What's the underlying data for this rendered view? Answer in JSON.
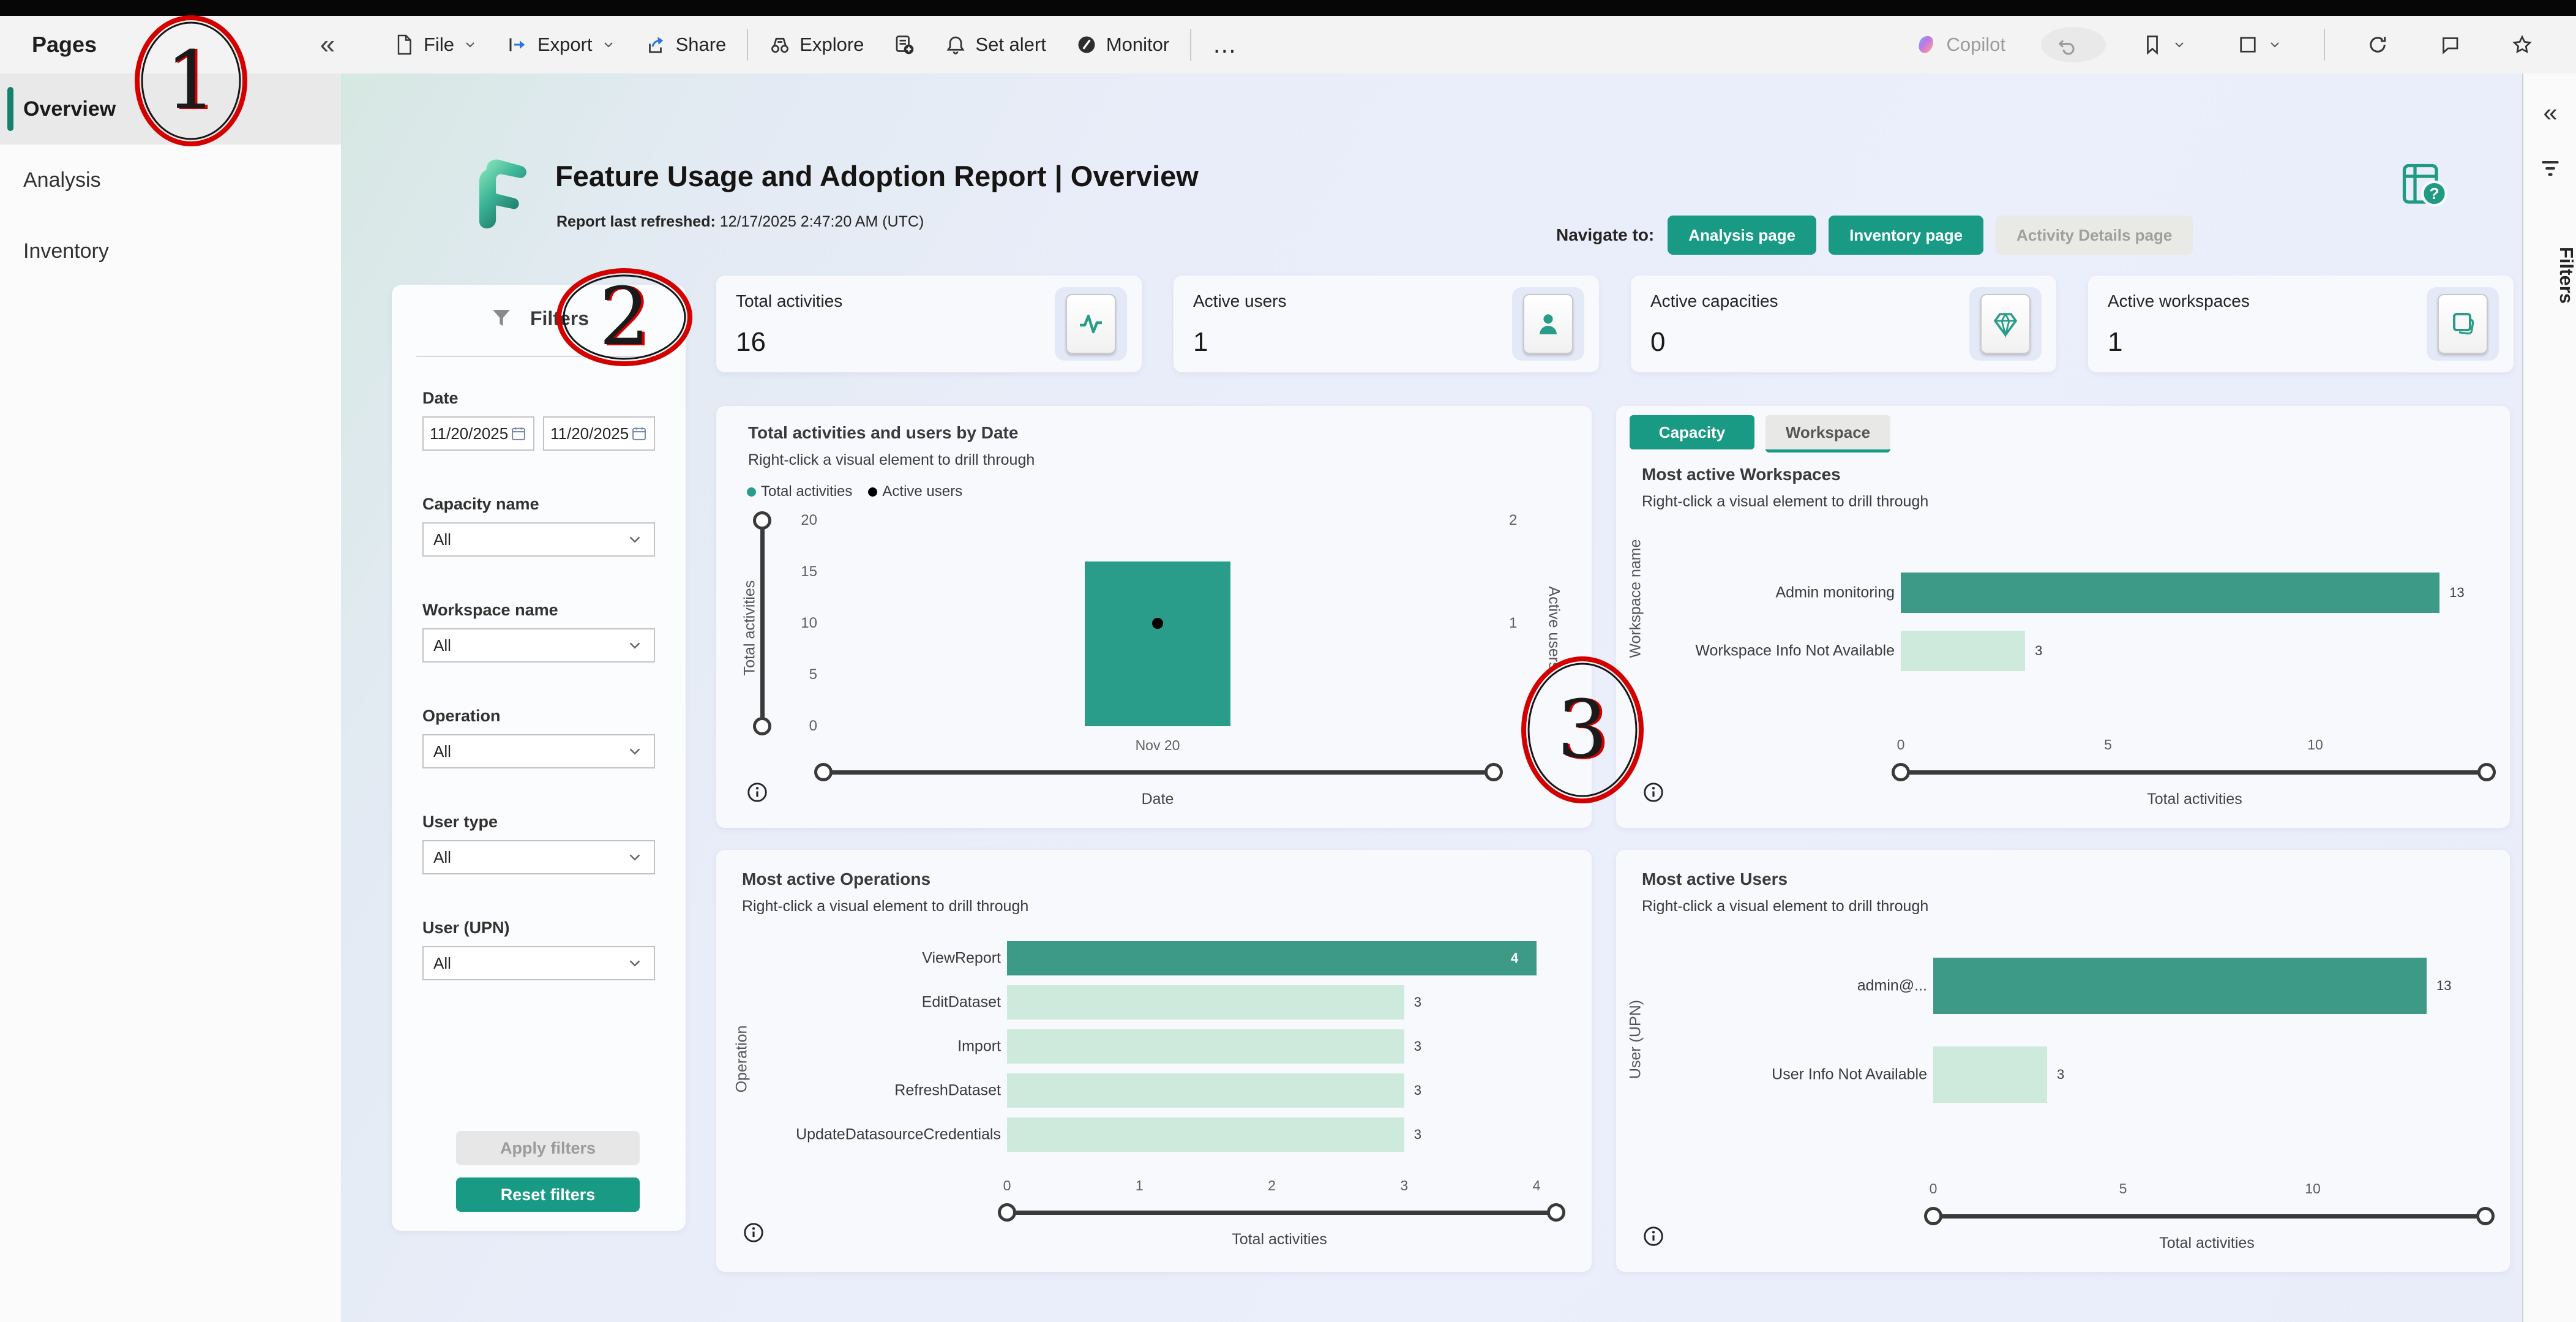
{
  "colors": {
    "accent": "#189a84",
    "bar_dark": "#3d9a86",
    "bar_bright": "#2a9d8a",
    "bar_light": "#cdeadd",
    "dot_black": "#000000",
    "annotation_red": "#d40000"
  },
  "toolbar": {
    "left_items": [
      {
        "icon": "file-icon",
        "label": "File",
        "chevron": true
      },
      {
        "icon": "export-icon",
        "label": "Export",
        "chevron": true
      },
      {
        "icon": "share-icon",
        "label": "Share"
      },
      {
        "divider": true
      },
      {
        "icon": "explore-icon",
        "label": "Explore"
      },
      {
        "icon": "subscribe-icon",
        "label": ""
      },
      {
        "icon": "bell-icon",
        "label": "Set alert"
      },
      {
        "icon": "monitor-icon",
        "label": "Monitor"
      },
      {
        "divider": true
      },
      {
        "icon": "ellipsis-icon",
        "label": "…",
        "iconless": true
      }
    ],
    "right_items": [
      {
        "icon": "copilot-icon",
        "label": "Copilot",
        "disabled": true
      },
      {
        "icon": "undo-icon",
        "circled": true,
        "disabled": true
      },
      {
        "icon": "bookmark-icon",
        "chevron": true
      },
      {
        "icon": "view-icon",
        "chevron": true
      },
      {
        "divider": true
      },
      {
        "icon": "refresh-icon"
      },
      {
        "icon": "comment-icon"
      },
      {
        "icon": "star-icon"
      }
    ]
  },
  "sidebar": {
    "title": "Pages",
    "items": [
      {
        "label": "Overview",
        "active": true
      },
      {
        "label": "Analysis",
        "active": false
      },
      {
        "label": "Inventory",
        "active": false
      }
    ]
  },
  "header": {
    "title": "Feature Usage and Adoption Report | Overview",
    "refreshed_label": "Report last refreshed:",
    "refreshed_value": " 12/17/2025 2:47:20 AM (UTC)",
    "navigate_label": "Navigate to:",
    "nav_buttons": [
      {
        "label": "Analysis page",
        "enabled": true
      },
      {
        "label": "Inventory page",
        "enabled": true
      },
      {
        "label": "Activity Details page",
        "enabled": false
      }
    ]
  },
  "kpis": [
    {
      "label": "Total activities",
      "value": "16",
      "icon": "pulse-icon"
    },
    {
      "label": "Active users",
      "value": "1",
      "icon": "person-icon"
    },
    {
      "label": "Active capacities",
      "value": "0",
      "icon": "diamond-icon"
    },
    {
      "label": "Active workspaces",
      "value": "1",
      "icon": "layers-icon"
    }
  ],
  "filters": {
    "title": "Filters",
    "fields": [
      {
        "label": "Date",
        "type": "daterange",
        "values": [
          "11/20/2025",
          "11/20/2025"
        ]
      },
      {
        "label": "Capacity name",
        "type": "dropdown",
        "value": "All"
      },
      {
        "label": "Workspace name",
        "type": "dropdown",
        "value": "All"
      },
      {
        "label": "Operation",
        "type": "dropdown",
        "value": "All"
      },
      {
        "label": "User type",
        "type": "dropdown",
        "value": "All"
      },
      {
        "label": "User (UPN)",
        "type": "dropdown",
        "value": "All"
      }
    ],
    "apply_label": "Apply filters",
    "reset_label": "Reset filters"
  },
  "chart_data": [
    {
      "type": "combo-column-scatter",
      "title": "Total activities and users by Date",
      "subtitle": "Right-click a visual element to drill through",
      "legend": [
        {
          "label": "Total activities",
          "color": "#2a9d8a"
        },
        {
          "label": "Active users",
          "color": "#000000"
        }
      ],
      "categories": [
        "Nov 20"
      ],
      "series": [
        {
          "name": "Total activities",
          "values": [
            16
          ],
          "axis": "left"
        },
        {
          "name": "Active users",
          "values": [
            1
          ],
          "axis": "right"
        }
      ],
      "xlabel": "Date",
      "y_left": {
        "label": "Total activities",
        "ticks": [
          0,
          5,
          10,
          15,
          20
        ],
        "range": [
          0,
          20
        ]
      },
      "y_right": {
        "label": "Active users",
        "ticks": [
          1,
          2
        ],
        "range": [
          0,
          2
        ]
      }
    },
    {
      "type": "bar",
      "title": "Most active Workspaces",
      "subtitle": "Right-click a visual element to drill through",
      "toggle": [
        {
          "label": "Capacity",
          "selected": true
        },
        {
          "label": "Workspace",
          "selected": false
        }
      ],
      "categories": [
        "Admin monitoring",
        "Workspace Info Not Available"
      ],
      "values": [
        13,
        3
      ],
      "xticks": [
        0,
        5,
        10
      ],
      "xlim": [
        0,
        13
      ],
      "xlabel": "Total activities",
      "ylabel": "Workspace name"
    },
    {
      "type": "bar",
      "title": "Most active Operations",
      "subtitle": "Right-click a visual element to drill through",
      "categories": [
        "ViewReport",
        "EditDataset",
        "Import",
        "RefreshDataset",
        "UpdateDatasourceCredentials"
      ],
      "values": [
        4,
        3,
        3,
        3,
        3
      ],
      "xticks": [
        0,
        1,
        2,
        3,
        4
      ],
      "xlim": [
        0,
        4
      ],
      "xlabel": "Total activities",
      "ylabel": "Operation"
    },
    {
      "type": "bar",
      "title": "Most active Users",
      "subtitle": "Right-click a visual element to drill through",
      "categories": [
        "admin@...",
        "User Info Not Available"
      ],
      "values": [
        13,
        3
      ],
      "xticks": [
        0,
        5,
        10
      ],
      "xlim": [
        0,
        13
      ],
      "xlabel": "Total activities",
      "ylabel": "User (UPN)"
    }
  ],
  "right_panel": {
    "label": "Filters"
  },
  "annotations": [
    {
      "label": "1"
    },
    {
      "label": "2"
    },
    {
      "label": "3"
    }
  ]
}
